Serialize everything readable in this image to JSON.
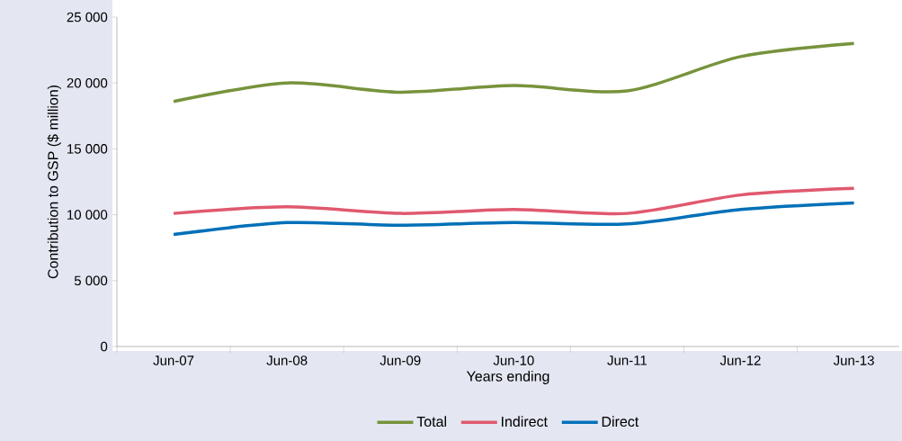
{
  "chart_data": {
    "type": "line",
    "xlabel": "Years ending",
    "ylabel": "Contribution to GSP ($ million)",
    "categories": [
      "Jun-07",
      "Jun-08",
      "Jun-09",
      "Jun-10",
      "Jun-11",
      "Jun-12",
      "Jun-13"
    ],
    "series": [
      {
        "name": "Total",
        "color": "#77933c",
        "values": [
          18600,
          20000,
          19300,
          19800,
          19400,
          22000,
          23000
        ]
      },
      {
        "name": "Indirect",
        "color": "#e0596e",
        "values": [
          10100,
          10600,
          10100,
          10400,
          10100,
          11500,
          12000
        ]
      },
      {
        "name": "Direct",
        "color": "#0070b8",
        "values": [
          8500,
          9400,
          9200,
          9400,
          9300,
          10400,
          10900
        ]
      }
    ],
    "ylim": [
      0,
      25000
    ],
    "yticks": [
      {
        "value": 0,
        "label": "0"
      },
      {
        "value": 5000,
        "label": "5 000"
      },
      {
        "value": 10000,
        "label": "10 000"
      },
      {
        "value": 15000,
        "label": "15 000"
      },
      {
        "value": 20000,
        "label": "20 000"
      },
      {
        "value": 25000,
        "label": "25 000"
      }
    ],
    "grid": false,
    "legend": "bottom",
    "marker": "none",
    "line_style": "solid"
  }
}
